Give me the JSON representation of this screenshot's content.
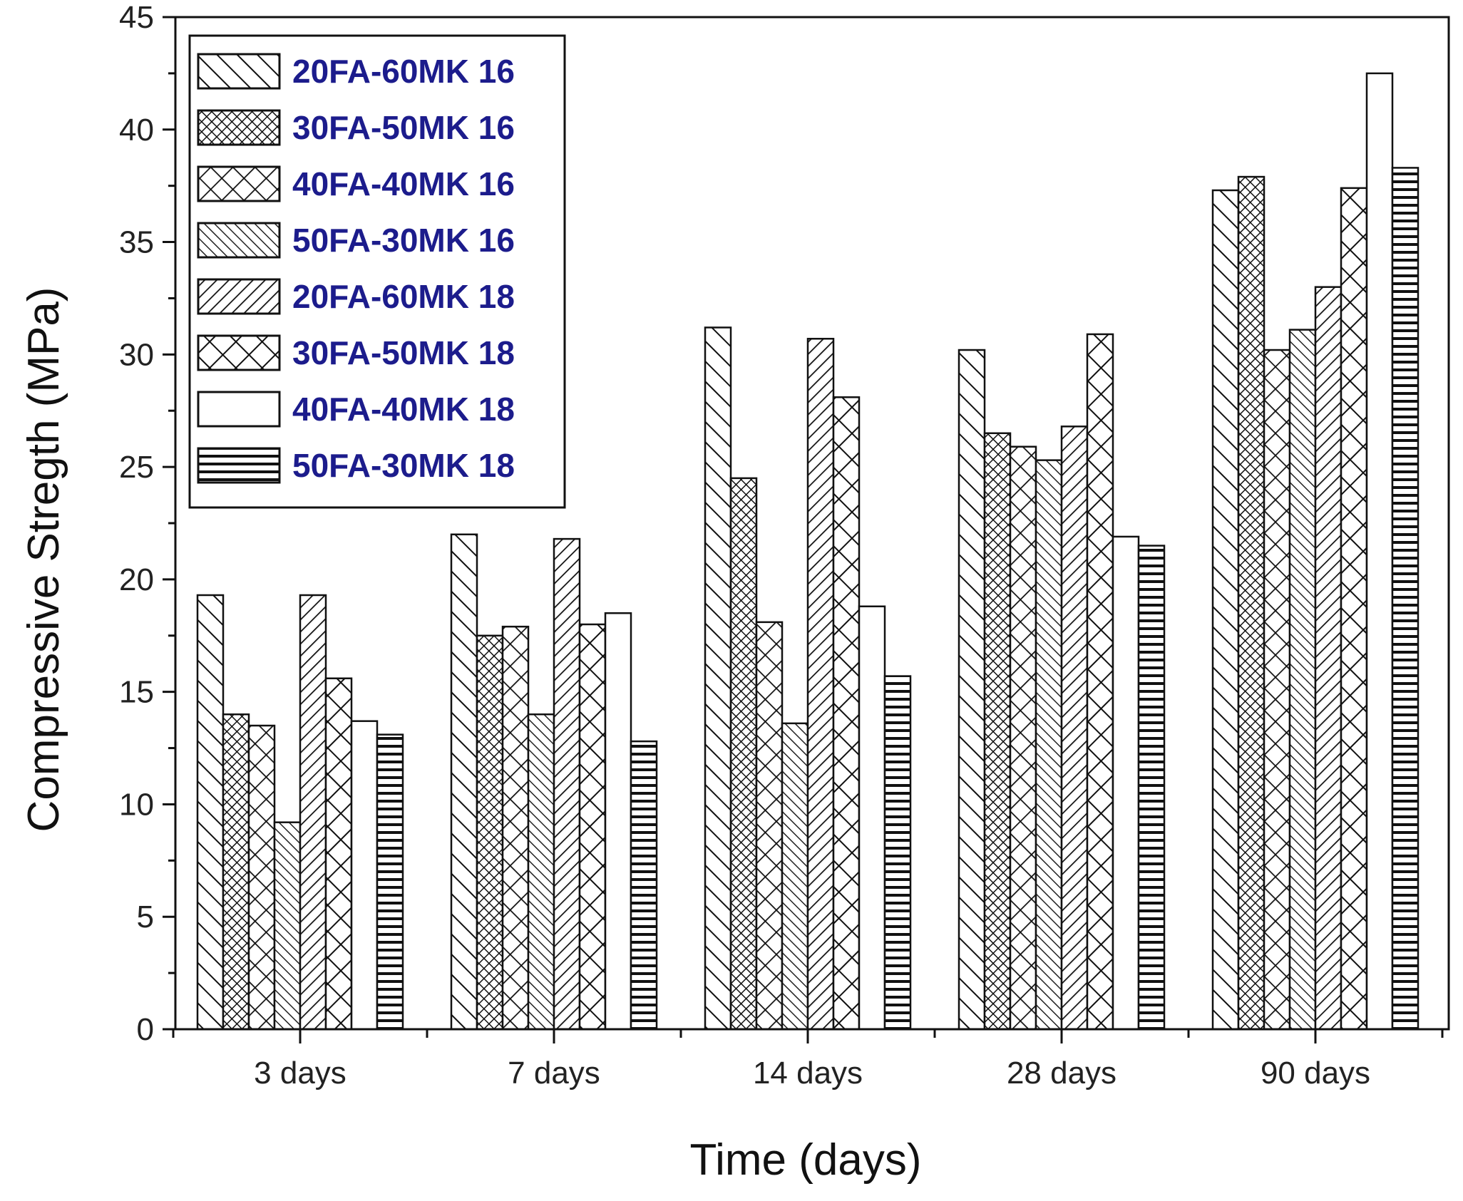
{
  "chart_data": {
    "type": "bar",
    "title": "",
    "xlabel": "Time (days)",
    "ylabel": "Compressive Stregth (MPa)",
    "ylim": [
      0,
      45
    ],
    "yticks": [
      "0",
      "5",
      "10",
      "15",
      "20",
      "25",
      "30",
      "35",
      "40",
      "45"
    ],
    "categories": [
      "3 days",
      "7 days",
      "14 days",
      "28 days",
      "90 days"
    ],
    "grid": false,
    "legend_position": "top-left",
    "series": [
      {
        "name": "20FA-60MK 16",
        "pattern": "diag-fwd",
        "values": [
          19.3,
          22.0,
          31.2,
          30.2,
          37.3
        ]
      },
      {
        "name": "30FA-50MK 16",
        "pattern": "dense-cross",
        "values": [
          14.0,
          17.5,
          24.5,
          26.5,
          37.9
        ]
      },
      {
        "name": "40FA-40MK 16",
        "pattern": "x-cross",
        "values": [
          13.5,
          17.9,
          18.1,
          25.9,
          30.2
        ]
      },
      {
        "name": "50FA-30MK 16",
        "pattern": "diag-fwd-dense",
        "values": [
          9.2,
          14.0,
          13.6,
          25.3,
          31.1
        ]
      },
      {
        "name": "20FA-60MK 18",
        "pattern": "diag-back",
        "values": [
          19.3,
          21.8,
          30.7,
          26.8,
          33.0
        ]
      },
      {
        "name": "30FA-50MK 18",
        "pattern": "x-cross-large",
        "values": [
          15.6,
          18.0,
          28.1,
          30.9,
          37.4
        ]
      },
      {
        "name": "40FA-40MK 18",
        "pattern": "none",
        "values": [
          13.7,
          18.5,
          18.8,
          21.9,
          42.5
        ]
      },
      {
        "name": "50FA-30MK 18",
        "pattern": "horizontal",
        "values": [
          13.1,
          12.8,
          15.7,
          21.5,
          38.3
        ]
      }
    ]
  }
}
